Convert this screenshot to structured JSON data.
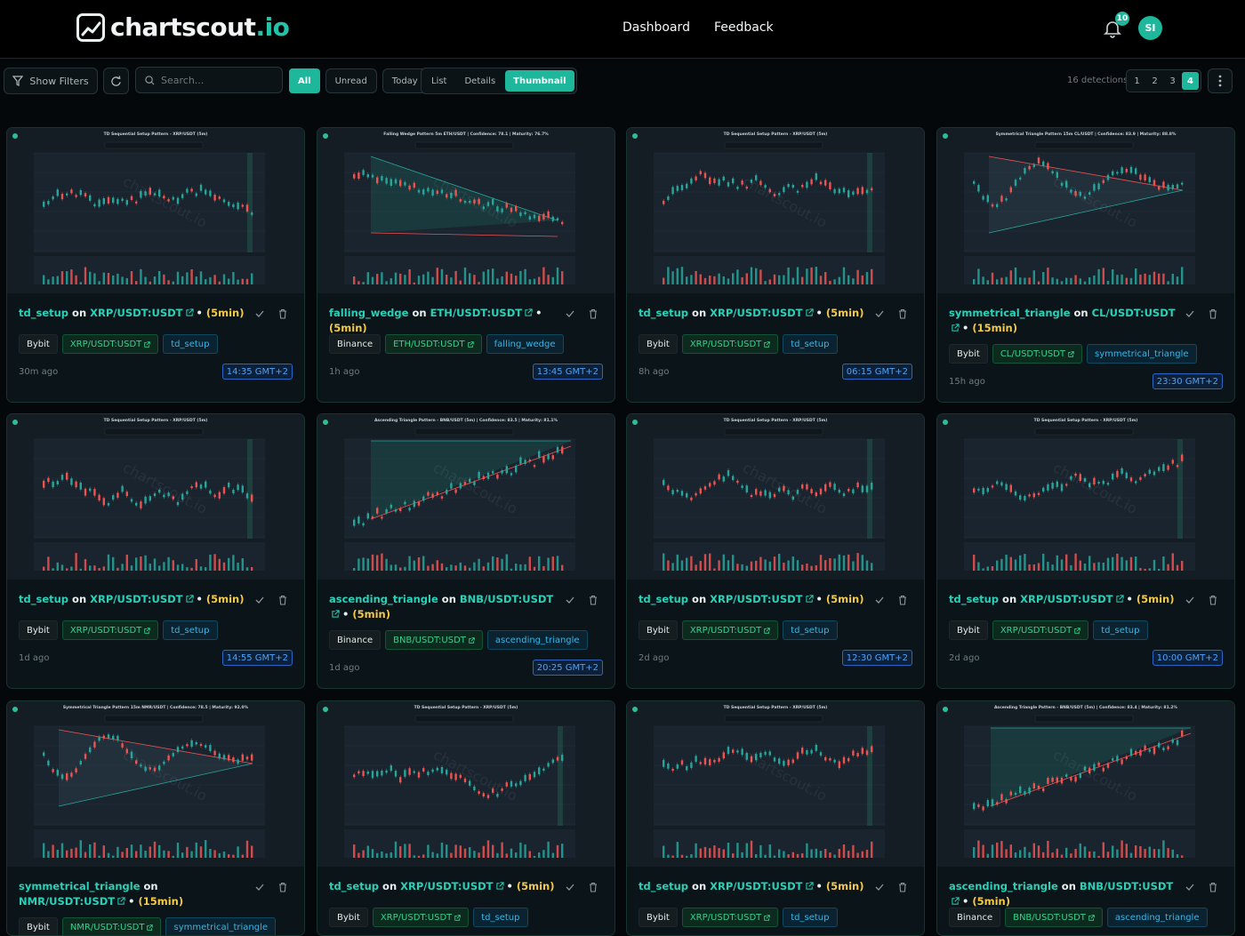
{
  "brand": {
    "name": "chartscout",
    "tld": ".io"
  },
  "nav": {
    "dashboard": "Dashboard",
    "feedback": "Feedback"
  },
  "notifications": {
    "count": "10"
  },
  "user": {
    "initials": "SI"
  },
  "toolbar": {
    "show_filters": "Show Filters",
    "search_placeholder": "Search...",
    "filters": [
      {
        "label": "All",
        "active": true
      },
      {
        "label": "Unread"
      },
      {
        "label": "Today"
      }
    ],
    "views": [
      {
        "label": "List"
      },
      {
        "label": "Details"
      },
      {
        "label": "Thumbnail",
        "active": true
      }
    ],
    "detections": "16 detections",
    "pages": [
      {
        "label": "1"
      },
      {
        "label": "2"
      },
      {
        "label": "3"
      },
      {
        "label": "4",
        "active": true
      }
    ]
  },
  "cards": [
    {
      "pattern": "td_setup",
      "symbol": "XRP/USDT:USDT",
      "timeframe": "5min",
      "exchange": "Bybit",
      "tag_symbol": "XRP/USDT:USDT",
      "tag_pattern": "td_setup",
      "ago": "30m ago",
      "time": "14:35 GMT+2",
      "chart_title": "TD Sequential Setup Pattern - XRP/USDT (5m)",
      "kind": "td",
      "watermark": "chartscout.io"
    },
    {
      "pattern": "falling_wedge",
      "symbol": "ETH/USDT:USDT",
      "timeframe": "5min",
      "exchange": "Binance",
      "tag_symbol": "ETH/USDT:USDT",
      "tag_pattern": "falling_wedge",
      "ago": "1h ago",
      "time": "13:45 GMT+2",
      "chart_title": "Falling Wedge Pattern 5m ETH/USDT | Confidence: 78.1 | Maturity: 76.7%",
      "kind": "wedge",
      "watermark": "chartscout.io"
    },
    {
      "pattern": "td_setup",
      "symbol": "XRP/USDT:USDT",
      "timeframe": "5min",
      "exchange": "Bybit",
      "tag_symbol": "XRP/USDT:USDT",
      "tag_pattern": "td_setup",
      "ago": "8h ago",
      "time": "06:15 GMT+2",
      "chart_title": "TD Sequential Setup Pattern - XRP/USDT (5m)",
      "kind": "td",
      "watermark": "chartscout.io"
    },
    {
      "pattern": "symmetrical_triangle",
      "symbol": "CL/USDT:USDT",
      "timeframe": "15min",
      "exchange": "Bybit",
      "tag_symbol": "CL/USDT:USDT",
      "tag_pattern": "symmetrical_triangle",
      "ago": "15h ago",
      "time": "23:30 GMT+2",
      "chart_title": "Symmetrical Triangle Pattern 15m CL/USDT | Confidence: 83.9 | Maturity: 88.8%",
      "kind": "sym",
      "watermark": "chartscout.io"
    },
    {
      "pattern": "td_setup",
      "symbol": "XRP/USDT:USDT",
      "timeframe": "5min",
      "exchange": "Bybit",
      "tag_symbol": "XRP/USDT:USDT",
      "tag_pattern": "td_setup",
      "ago": "1d ago",
      "time": "14:55 GMT+2",
      "chart_title": "TD Sequential Setup Pattern - XRP/USDT (5m)",
      "kind": "td",
      "watermark": "chartscout.io"
    },
    {
      "pattern": "ascending_triangle",
      "symbol": "BNB/USDT:USDT",
      "timeframe": "5min",
      "exchange": "Binance",
      "tag_symbol": "BNB/USDT:USDT",
      "tag_pattern": "ascending_triangle",
      "ago": "1d ago",
      "time": "20:25 GMT+2",
      "chart_title": "Ascending Triangle Pattern - BNB/USDT (5m) | Confidence: 83.5 | Maturity: 81.1%",
      "kind": "asc",
      "watermark": "chartscout.io"
    },
    {
      "pattern": "td_setup",
      "symbol": "XRP/USDT:USDT",
      "timeframe": "5min",
      "exchange": "Bybit",
      "tag_symbol": "XRP/USDT:USDT",
      "tag_pattern": "td_setup",
      "ago": "2d ago",
      "time": "12:30 GMT+2",
      "chart_title": "TD Sequential Setup Pattern - XRP/USDT (5m)",
      "kind": "td",
      "watermark": "chartscout.io"
    },
    {
      "pattern": "td_setup",
      "symbol": "XRP/USDT:USDT",
      "timeframe": "5min",
      "exchange": "Bybit",
      "tag_symbol": "XRP/USDT:USDT",
      "tag_pattern": "td_setup",
      "ago": "2d ago",
      "time": "10:00 GMT+2",
      "chart_title": "TD Sequential Setup Pattern - XRP/USDT (5m)",
      "kind": "td",
      "watermark": "chartscout.io"
    },
    {
      "pattern": "symmetrical_triangle",
      "symbol": "NMR/USDT:USDT",
      "timeframe": "15min",
      "exchange": "Bybit",
      "tag_symbol": "NMR/USDT:USDT",
      "tag_pattern": "symmetrical_triangle",
      "ago": "",
      "time": "",
      "chart_title": "Symmetrical Triangle Pattern 15m NMR/USDT | Confidence: 78.5 | Maturity: 92.0%",
      "kind": "sym",
      "watermark": "chartscout.io"
    },
    {
      "pattern": "td_setup",
      "symbol": "XRP/USDT:USDT",
      "timeframe": "5min",
      "exchange": "Bybit",
      "tag_symbol": "XRP/USDT:USDT",
      "tag_pattern": "td_setup",
      "ago": "",
      "time": "",
      "chart_title": "TD Sequential Setup Pattern - XRP/USDT (5m)",
      "kind": "td",
      "watermark": "chartscout.io"
    },
    {
      "pattern": "td_setup",
      "symbol": "XRP/USDT:USDT",
      "timeframe": "5min",
      "exchange": "Bybit",
      "tag_symbol": "XRP/USDT:USDT",
      "tag_pattern": "td_setup",
      "ago": "",
      "time": "",
      "chart_title": "TD Sequential Setup Pattern - XRP/USDT (5m)",
      "kind": "td",
      "watermark": "chartscout.io"
    },
    {
      "pattern": "ascending_triangle",
      "symbol": "BNB/USDT:USDT",
      "timeframe": "5min",
      "exchange": "Binance",
      "tag_symbol": "BNB/USDT:USDT",
      "tag_pattern": "ascending_triangle",
      "ago": "",
      "time": "",
      "chart_title": "Ascending Triangle Pattern - BNB/USDT (5m) | Confidence: 83.4 | Maturity: 81.2%",
      "kind": "asc",
      "watermark": "chartscout.io"
    }
  ],
  "colors": {
    "accent": "#1fb79c",
    "up": "#26a69a",
    "down": "#ef5350",
    "timeframe": "#f3c94a"
  }
}
